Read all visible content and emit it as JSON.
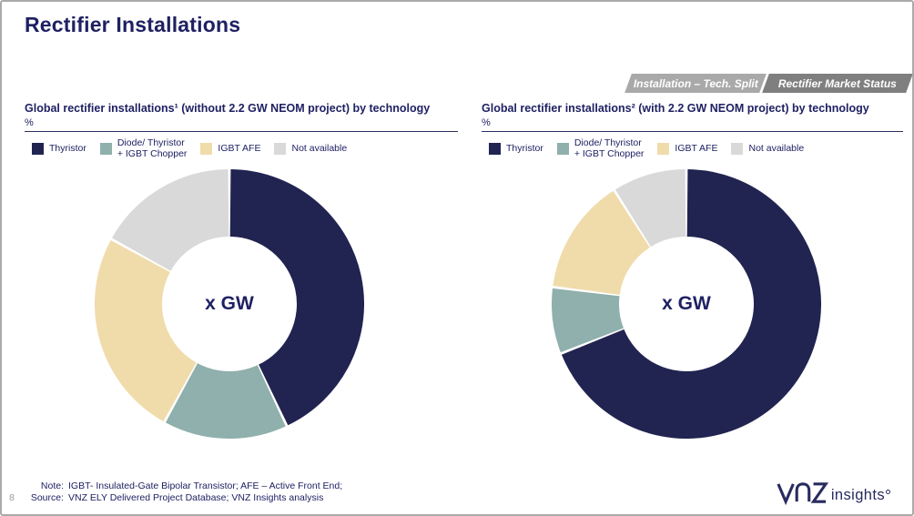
{
  "slide": {
    "title": "Rectifier Installations",
    "page_number": "8",
    "tabs": [
      {
        "label": "Installation – Tech. Split",
        "color": "#a9a9a9",
        "active": false
      },
      {
        "label": "Rectifier Market Status",
        "color": "#7f7f7f",
        "active": true
      }
    ],
    "footer": {
      "note_label": "Note:",
      "note_text": "IGBT- Insulated-Gate Bipolar Transistor; AFE – Active Front End;",
      "source_label": "Source:",
      "source_text": "VNZ ELY Delivered Project Database; VNZ Insights analysis"
    },
    "logo": {
      "brand": "VNZ",
      "suffix": "insights"
    }
  },
  "colors": {
    "accent_navy": "#1f2163",
    "donut_navy": "#212450",
    "donut_teal": "#8fb0ac",
    "donut_tan": "#f0dcab",
    "donut_gray": "#d9d9d9"
  },
  "chart_data": [
    {
      "type": "pie",
      "subtype": "donut",
      "title": "Global rectifier installations¹ (without 2.2 GW NEOM project) by technology",
      "unit_label": "%",
      "center_label": "x GW",
      "legend_position": "top",
      "direction": "clockwise",
      "start_angle_deg": 0,
      "categories": [
        "Thyristor",
        "Diode/ Thyristor + IGBT Chopper",
        "IGBT AFE",
        "Not available"
      ],
      "values": [
        43,
        15,
        25,
        17
      ],
      "colors": [
        "#212450",
        "#8fb0ac",
        "#f0dcab",
        "#d9d9d9"
      ],
      "legend_lines": [
        [
          "Thyristor"
        ],
        [
          "Diode/ Thyristor",
          "+ IGBT Chopper"
        ],
        [
          "IGBT AFE"
        ],
        [
          "Not available"
        ]
      ]
    },
    {
      "type": "pie",
      "subtype": "donut",
      "title": "Global rectifier installations² (with 2.2 GW NEOM project) by technology",
      "unit_label": "%",
      "center_label": "x GW",
      "legend_position": "top",
      "direction": "clockwise",
      "start_angle_deg": 0,
      "categories": [
        "Thyristor",
        "Diode/ Thyristor + IGBT Chopper",
        "IGBT AFE",
        "Not available"
      ],
      "values": [
        69,
        8,
        14,
        9
      ],
      "colors": [
        "#212450",
        "#8fb0ac",
        "#f0dcab",
        "#d9d9d9"
      ],
      "legend_lines": [
        [
          "Thyristor"
        ],
        [
          "Diode/ Thyristor",
          "+ IGBT Chopper"
        ],
        [
          "IGBT AFE"
        ],
        [
          "Not available"
        ]
      ]
    }
  ]
}
